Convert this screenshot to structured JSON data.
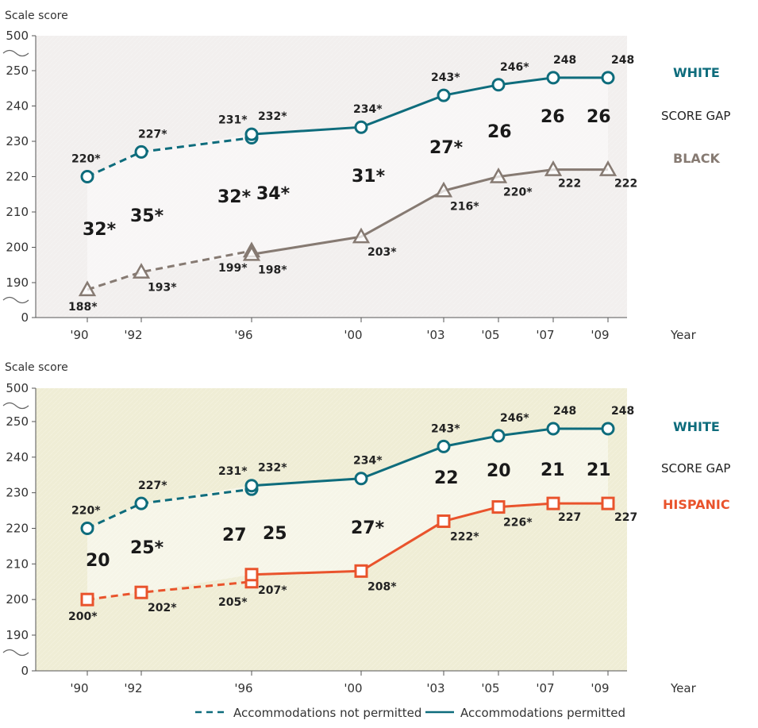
{
  "chart_data": [
    {
      "type": "line",
      "ylabel": "Scale score",
      "xlabel": "Year",
      "y_ticks": [
        "500",
        "250",
        "240",
        "230",
        "220",
        "210",
        "200",
        "190",
        "0"
      ],
      "x_ticks": [
        "'90",
        "'92",
        "'96",
        "'00",
        "'03",
        "'05",
        "'07",
        "'09"
      ],
      "axis_break": true,
      "background": "#f2efee",
      "group_labels": {
        "top": "WHITE",
        "middle": "SCORE GAP",
        "bottom": "BLACK"
      },
      "series": [
        {
          "key": "white",
          "color": "#0e6c7c",
          "marker": "circle",
          "points": [
            {
              "x": 1990,
              "y": 220,
              "label": "220*",
              "accommodations": false
            },
            {
              "x": 1992,
              "y": 227,
              "label": "227*",
              "accommodations": false
            },
            {
              "x": 1996,
              "y": 231,
              "label": "231*",
              "accommodations": false
            },
            {
              "x": 1996,
              "y": 232,
              "label": "232*",
              "accommodations": true
            },
            {
              "x": 2000,
              "y": 234,
              "label": "234*",
              "accommodations": true
            },
            {
              "x": 2003,
              "y": 243,
              "label": "243*",
              "accommodations": true
            },
            {
              "x": 2005,
              "y": 246,
              "label": "246*",
              "accommodations": true
            },
            {
              "x": 2007,
              "y": 248,
              "label": "248",
              "accommodations": true
            },
            {
              "x": 2009,
              "y": 248,
              "label": "248",
              "accommodations": true
            }
          ]
        },
        {
          "key": "black",
          "color": "#867a72",
          "marker": "triangle",
          "points": [
            {
              "x": 1990,
              "y": 188,
              "label": "188*",
              "accommodations": false
            },
            {
              "x": 1992,
              "y": 193,
              "label": "193*",
              "accommodations": false
            },
            {
              "x": 1996,
              "y": 199,
              "label": "199*",
              "accommodations": false
            },
            {
              "x": 1996,
              "y": 198,
              "label": "198*",
              "accommodations": true
            },
            {
              "x": 2000,
              "y": 203,
              "label": "203*",
              "accommodations": true
            },
            {
              "x": 2003,
              "y": 216,
              "label": "216*",
              "accommodations": true
            },
            {
              "x": 2005,
              "y": 220,
              "label": "220*",
              "accommodations": true
            },
            {
              "x": 2007,
              "y": 222,
              "label": "222",
              "accommodations": true
            },
            {
              "x": 2009,
              "y": 222,
              "label": "222",
              "accommodations": true
            }
          ]
        }
      ],
      "gaps": [
        {
          "x": 1990,
          "label": "32*"
        },
        {
          "x": 1992,
          "label": "35*"
        },
        {
          "x": 1996,
          "label": "32*",
          "accommodations": false
        },
        {
          "x": 1996,
          "label": "34*",
          "accommodations": true
        },
        {
          "x": 2000,
          "label": "31*"
        },
        {
          "x": 2003,
          "label": "27*"
        },
        {
          "x": 2005,
          "label": "26"
        },
        {
          "x": 2007,
          "label": "26"
        },
        {
          "x": 2009,
          "label": "26"
        }
      ]
    },
    {
      "type": "line",
      "ylabel": "Scale score",
      "xlabel": "Year",
      "y_ticks": [
        "500",
        "250",
        "240",
        "230",
        "220",
        "210",
        "200",
        "190",
        "0"
      ],
      "x_ticks": [
        "'90",
        "'92",
        "'96",
        "'00",
        "'03",
        "'05",
        "'07",
        "'09"
      ],
      "axis_break": true,
      "background": "#efedd5",
      "group_labels": {
        "top": "WHITE",
        "middle": "SCORE GAP",
        "bottom": "HISPANIC"
      },
      "series": [
        {
          "key": "white",
          "color": "#0e6c7c",
          "marker": "circle",
          "points": [
            {
              "x": 1990,
              "y": 220,
              "label": "220*",
              "accommodations": false
            },
            {
              "x": 1992,
              "y": 227,
              "label": "227*",
              "accommodations": false
            },
            {
              "x": 1996,
              "y": 231,
              "label": "231*",
              "accommodations": false
            },
            {
              "x": 1996,
              "y": 232,
              "label": "232*",
              "accommodations": true
            },
            {
              "x": 2000,
              "y": 234,
              "label": "234*",
              "accommodations": true
            },
            {
              "x": 2003,
              "y": 243,
              "label": "243*",
              "accommodations": true
            },
            {
              "x": 2005,
              "y": 246,
              "label": "246*",
              "accommodations": true
            },
            {
              "x": 2007,
              "y": 248,
              "label": "248",
              "accommodations": true
            },
            {
              "x": 2009,
              "y": 248,
              "label": "248",
              "accommodations": true
            }
          ]
        },
        {
          "key": "hispanic",
          "color": "#e9532c",
          "marker": "square",
          "points": [
            {
              "x": 1990,
              "y": 200,
              "label": "200*",
              "accommodations": false
            },
            {
              "x": 1992,
              "y": 202,
              "label": "202*",
              "accommodations": false
            },
            {
              "x": 1996,
              "y": 205,
              "label": "205*",
              "accommodations": false
            },
            {
              "x": 1996,
              "y": 207,
              "label": "207*",
              "accommodations": true
            },
            {
              "x": 2000,
              "y": 208,
              "label": "208*",
              "accommodations": true
            },
            {
              "x": 2003,
              "y": 222,
              "label": "222*",
              "accommodations": true
            },
            {
              "x": 2005,
              "y": 226,
              "label": "226*",
              "accommodations": true
            },
            {
              "x": 2007,
              "y": 227,
              "label": "227",
              "accommodations": true
            },
            {
              "x": 2009,
              "y": 227,
              "label": "227",
              "accommodations": true
            }
          ]
        }
      ],
      "gaps": [
        {
          "x": 1990,
          "label": "20"
        },
        {
          "x": 1992,
          "label": "25*"
        },
        {
          "x": 1996,
          "label": "27",
          "accommodations": false
        },
        {
          "x": 1996,
          "label": "25",
          "accommodations": true
        },
        {
          "x": 2000,
          "label": "27*"
        },
        {
          "x": 2003,
          "label": "22"
        },
        {
          "x": 2005,
          "label": "20"
        },
        {
          "x": 2007,
          "label": "21"
        },
        {
          "x": 2009,
          "label": "21"
        }
      ]
    }
  ],
  "legend": {
    "not_permitted": "Accommodations not permitted",
    "permitted": "Accommodations permitted"
  }
}
